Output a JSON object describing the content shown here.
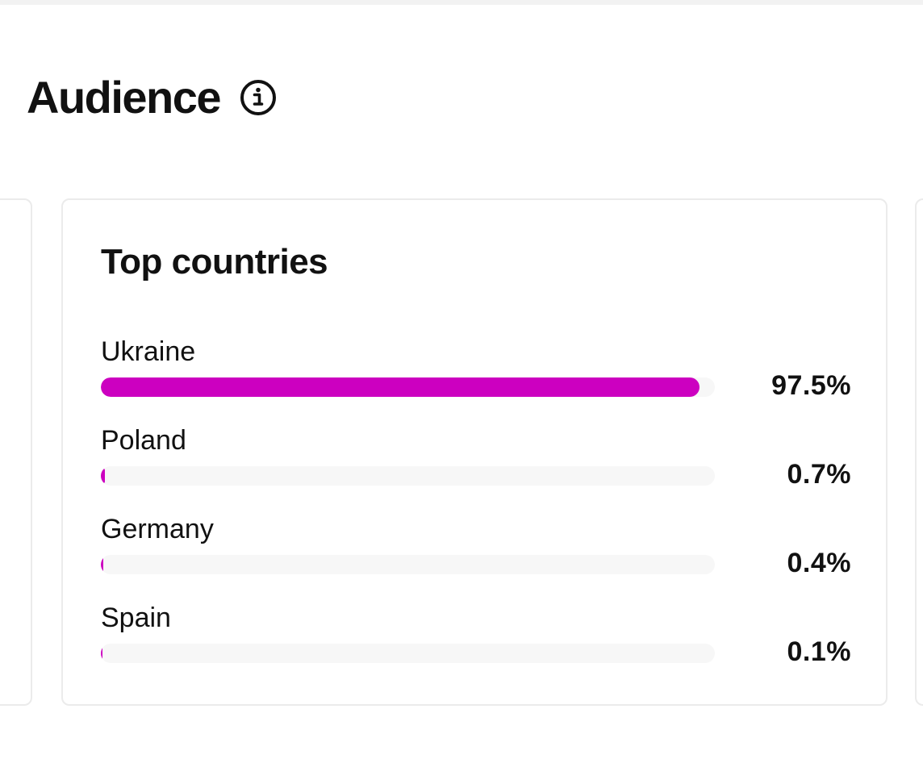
{
  "header": {
    "title": "Audience",
    "info_icon": "info-circle-icon"
  },
  "card": {
    "title": "Top countries",
    "accent_color": "#cc00c0",
    "track_color": "#f7f7f7",
    "countries": [
      {
        "name": "Ukraine",
        "value_label": "97.5%",
        "percent": 97.5
      },
      {
        "name": "Poland",
        "value_label": "0.7%",
        "percent": 0.7
      },
      {
        "name": "Germany",
        "value_label": "0.4%",
        "percent": 0.4
      },
      {
        "name": "Spain",
        "value_label": "0.1%",
        "percent": 0.1
      }
    ]
  }
}
